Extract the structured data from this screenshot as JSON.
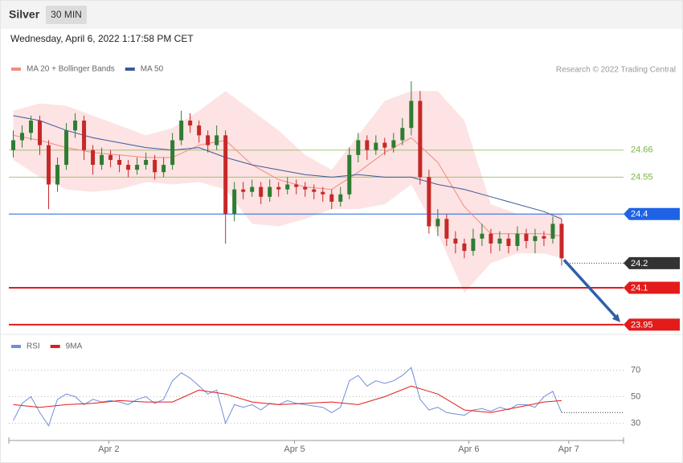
{
  "header": {
    "title": "Silver",
    "interval": "30 MIN",
    "timestamp": "Wednesday, April 6, 2022 1:17:58 PM CET",
    "credit": "Research © 2022 Trading Central"
  },
  "chart_data": [
    {
      "type": "candlestick",
      "xlim": [
        -0.5,
        69
      ],
      "xticks": [
        {
          "value": 10.8,
          "label": "Apr 2"
        },
        {
          "value": 31.8,
          "label": "Apr 5"
        },
        {
          "value": 51.5,
          "label": "Apr 6"
        },
        {
          "value": 62.8,
          "label": "Apr 7"
        }
      ],
      "ylim": [
        23.93,
        24.95
      ],
      "up_color": "#2e7d32",
      "down_color": "#c62828",
      "candles": [
        [
          24.66,
          24.74,
          24.63,
          24.7
        ],
        [
          24.7,
          24.76,
          24.67,
          24.73
        ],
        [
          24.73,
          24.8,
          24.7,
          24.78
        ],
        [
          24.78,
          24.8,
          24.64,
          24.68
        ],
        [
          24.68,
          24.7,
          24.42,
          24.52
        ],
        [
          24.52,
          24.63,
          24.49,
          24.6
        ],
        [
          24.6,
          24.77,
          24.58,
          24.74
        ],
        [
          24.74,
          24.81,
          24.71,
          24.78
        ],
        [
          24.78,
          24.8,
          24.62,
          24.66
        ],
        [
          24.66,
          24.68,
          24.56,
          24.6
        ],
        [
          24.6,
          24.67,
          24.58,
          24.64
        ],
        [
          24.64,
          24.66,
          24.59,
          24.62
        ],
        [
          24.62,
          24.64,
          24.57,
          24.6
        ],
        [
          24.6,
          24.62,
          24.55,
          24.58
        ],
        [
          24.58,
          24.63,
          24.56,
          24.6
        ],
        [
          24.6,
          24.65,
          24.58,
          24.62
        ],
        [
          24.62,
          24.64,
          24.54,
          24.57
        ],
        [
          24.57,
          24.63,
          24.55,
          24.6
        ],
        [
          24.6,
          24.73,
          24.58,
          24.7
        ],
        [
          24.7,
          24.82,
          24.68,
          24.78
        ],
        [
          24.78,
          24.81,
          24.73,
          24.76
        ],
        [
          24.76,
          24.78,
          24.69,
          24.72
        ],
        [
          24.72,
          24.74,
          24.65,
          24.68
        ],
        [
          24.68,
          24.76,
          24.66,
          24.72
        ],
        [
          24.72,
          24.74,
          24.28,
          24.4
        ],
        [
          24.4,
          24.53,
          24.37,
          24.5
        ],
        [
          24.5,
          24.53,
          24.46,
          24.49
        ],
        [
          24.49,
          24.54,
          24.47,
          24.51
        ],
        [
          24.51,
          24.53,
          24.44,
          24.47
        ],
        [
          24.47,
          24.54,
          24.45,
          24.51
        ],
        [
          24.51,
          24.53,
          24.47,
          24.5
        ],
        [
          24.5,
          24.55,
          24.48,
          24.52
        ],
        [
          24.52,
          24.54,
          24.48,
          24.51
        ],
        [
          24.51,
          24.53,
          24.47,
          24.5
        ],
        [
          24.5,
          24.52,
          24.46,
          24.49
        ],
        [
          24.49,
          24.51,
          24.45,
          24.48
        ],
        [
          24.48,
          24.5,
          24.42,
          24.45
        ],
        [
          24.45,
          24.51,
          24.43,
          24.48
        ],
        [
          24.48,
          24.67,
          24.46,
          24.64
        ],
        [
          24.64,
          24.73,
          24.61,
          24.7
        ],
        [
          24.7,
          24.72,
          24.62,
          24.66
        ],
        [
          24.66,
          24.72,
          24.64,
          24.69
        ],
        [
          24.69,
          24.71,
          24.64,
          24.67
        ],
        [
          24.67,
          24.73,
          24.65,
          24.7
        ],
        [
          24.7,
          24.79,
          24.68,
          24.75
        ],
        [
          24.75,
          24.94,
          24.72,
          24.86
        ],
        [
          24.86,
          24.9,
          24.52,
          24.55
        ],
        [
          24.55,
          24.58,
          24.32,
          24.35
        ],
        [
          24.35,
          24.42,
          24.31,
          24.38
        ],
        [
          24.38,
          24.4,
          24.27,
          24.3
        ],
        [
          24.3,
          24.33,
          24.24,
          24.28
        ],
        [
          24.28,
          24.3,
          24.22,
          24.25
        ],
        [
          24.25,
          24.34,
          24.23,
          24.3
        ],
        [
          24.3,
          24.36,
          24.27,
          24.32
        ],
        [
          24.32,
          24.34,
          24.24,
          24.28
        ],
        [
          24.28,
          24.33,
          24.25,
          24.3
        ],
        [
          24.3,
          24.32,
          24.24,
          24.27
        ],
        [
          24.27,
          24.35,
          24.25,
          24.32
        ],
        [
          24.32,
          24.34,
          24.26,
          24.29
        ],
        [
          24.29,
          24.34,
          24.24,
          24.31
        ],
        [
          24.31,
          24.33,
          24.27,
          24.3
        ],
        [
          24.3,
          24.39,
          24.28,
          24.36
        ],
        [
          24.36,
          24.38,
          24.19,
          24.22
        ]
      ],
      "series": [
        {
          "name": "MA 20 + Bollinger Bands",
          "color": "#f28b82",
          "band_color": "#fde3e3",
          "x": [
            0,
            3,
            6,
            9,
            12,
            15,
            18,
            21,
            24,
            27,
            30,
            33,
            36,
            39,
            42,
            45,
            48,
            51,
            54,
            57,
            60,
            62
          ],
          "values": [
            24.72,
            24.7,
            24.67,
            24.65,
            24.64,
            24.63,
            24.63,
            24.68,
            24.7,
            24.6,
            24.54,
            24.51,
            24.5,
            24.57,
            24.65,
            24.71,
            24.61,
            24.43,
            24.32,
            24.32,
            24.32,
            24.31
          ],
          "upper": [
            24.82,
            24.85,
            24.84,
            24.8,
            24.76,
            24.72,
            24.75,
            24.82,
            24.9,
            24.82,
            24.74,
            24.64,
            24.58,
            24.72,
            24.86,
            24.9,
            24.9,
            24.78,
            24.44,
            24.4,
            24.4,
            24.4
          ],
          "lower": [
            24.62,
            24.55,
            24.5,
            24.49,
            24.5,
            24.53,
            24.52,
            24.53,
            24.5,
            24.36,
            24.35,
            24.38,
            24.42,
            24.42,
            24.44,
            24.52,
            24.32,
            24.08,
            24.2,
            24.24,
            24.24,
            24.22
          ]
        },
        {
          "name": "MA 50",
          "color": "#3c5a99",
          "x": [
            0,
            3,
            6,
            9,
            12,
            15,
            18,
            21,
            24,
            27,
            30,
            33,
            36,
            39,
            42,
            45,
            48,
            51,
            54,
            57,
            60,
            62
          ],
          "values": [
            24.8,
            24.78,
            24.74,
            24.71,
            24.69,
            24.67,
            24.66,
            24.67,
            24.63,
            24.6,
            24.58,
            24.56,
            24.55,
            24.56,
            24.55,
            24.55,
            24.52,
            24.5,
            24.47,
            24.44,
            24.41,
            24.38
          ]
        }
      ],
      "levels": [
        {
          "value": 24.66,
          "color": "#7cb342",
          "line": "solid",
          "label_style": "text"
        },
        {
          "value": 24.55,
          "color": "#7cb342",
          "line": "solid",
          "label_style": "text"
        },
        {
          "value": 24.4,
          "color": "#1e63e6",
          "line": "solid",
          "label_style": "box"
        },
        {
          "value": 24.2,
          "color": "#333333",
          "line": "dotted",
          "label_style": "box"
        },
        {
          "value": 24.1,
          "color": "#e31b1b",
          "line": "thick",
          "label_style": "box"
        },
        {
          "value": 23.95,
          "color": "#e31b1b",
          "line": "thick",
          "label_style": "box"
        }
      ]
    },
    {
      "type": "line",
      "xlim": [
        -0.5,
        69
      ],
      "ylim": [
        20,
        80
      ],
      "yticks": [
        30,
        50,
        70
      ],
      "series": [
        {
          "name": "RSI",
          "color": "#6f8fd8",
          "x": [
            0,
            1,
            2,
            3,
            4,
            5,
            6,
            7,
            8,
            9,
            10,
            11,
            12,
            13,
            14,
            15,
            16,
            17,
            18,
            19,
            20,
            21,
            22,
            23,
            24,
            25,
            26,
            27,
            28,
            29,
            30,
            31,
            32,
            33,
            34,
            35,
            36,
            37,
            38,
            39,
            40,
            41,
            42,
            43,
            44,
            45,
            46,
            47,
            48,
            49,
            50,
            51,
            52,
            53,
            54,
            55,
            56,
            57,
            58,
            59,
            60,
            61,
            62
          ],
          "values": [
            32,
            45,
            50,
            38,
            28,
            48,
            52,
            50,
            44,
            48,
            46,
            47,
            46,
            44,
            48,
            50,
            45,
            48,
            62,
            68,
            64,
            58,
            52,
            55,
            30,
            44,
            42,
            44,
            40,
            45,
            44,
            47,
            45,
            44,
            43,
            42,
            38,
            42,
            62,
            66,
            58,
            62,
            60,
            62,
            66,
            72,
            48,
            40,
            42,
            38,
            37,
            36,
            40,
            41,
            39,
            42,
            40,
            44,
            44,
            42,
            50,
            54,
            38
          ]
        },
        {
          "name": "9MA",
          "color": "#e31b1b",
          "x": [
            0,
            3,
            6,
            9,
            12,
            15,
            18,
            21,
            24,
            27,
            30,
            33,
            36,
            39,
            42,
            45,
            48,
            51,
            54,
            57,
            60,
            62
          ],
          "values": [
            44,
            42,
            44,
            45,
            47,
            46,
            46,
            55,
            52,
            46,
            44,
            45,
            46,
            44,
            50,
            58,
            52,
            40,
            38,
            42,
            46,
            47
          ]
        }
      ]
    }
  ]
}
